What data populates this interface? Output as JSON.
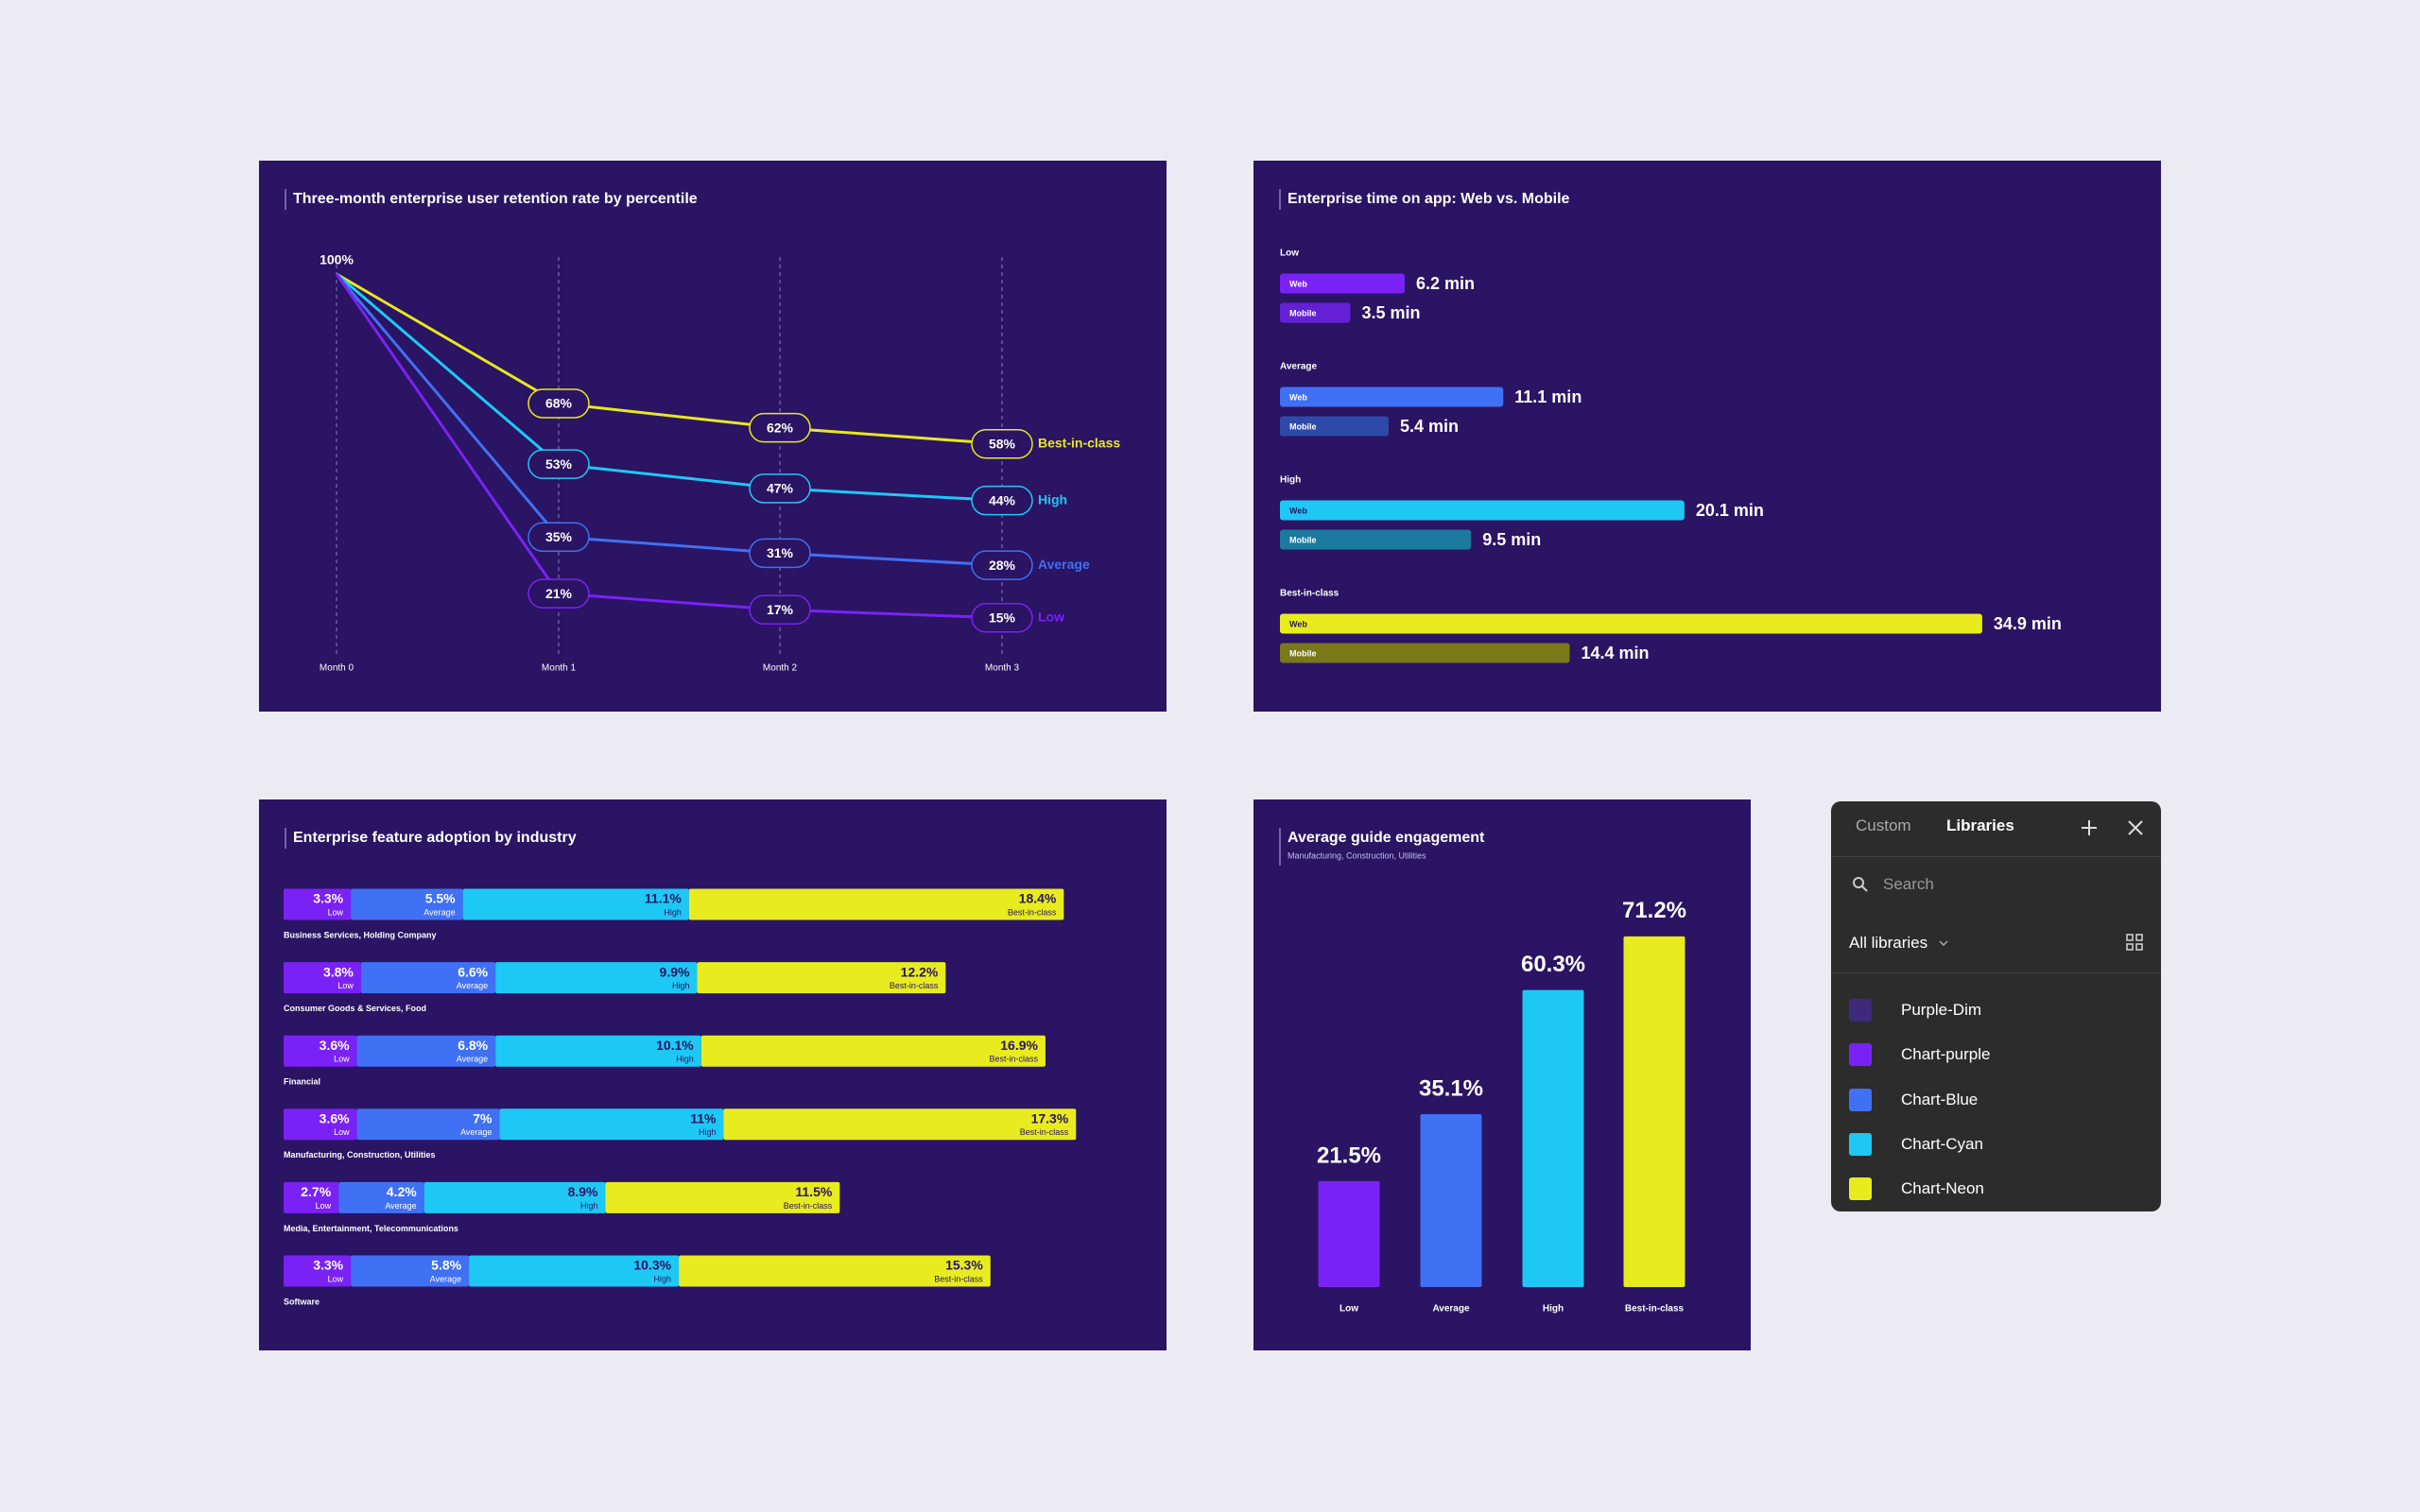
{
  "chart_data": [
    {
      "type": "line",
      "title": "Three-month enterprise user retention rate by percentile",
      "categories": [
        "Month 0",
        "Month 1",
        "Month 2",
        "Month 3"
      ],
      "ylim": [
        0,
        100
      ],
      "series": [
        {
          "name": "Best-in-class",
          "color": "#e8e81e",
          "values": [
            100,
            68,
            62,
            58
          ],
          "value_labels": [
            "100%",
            "68%",
            "62%",
            "58%"
          ]
        },
        {
          "name": "High",
          "color": "#1ec8f5",
          "values": [
            100,
            53,
            47,
            44
          ],
          "value_labels": [
            null,
            "53%",
            "47%",
            "44%"
          ]
        },
        {
          "name": "Average",
          "color": "#4070f4",
          "values": [
            100,
            35,
            31,
            28
          ],
          "value_labels": [
            null,
            "35%",
            "31%",
            "28%"
          ]
        },
        {
          "name": "Low",
          "color": "#7a22f5",
          "values": [
            100,
            21,
            17,
            15
          ],
          "value_labels": [
            null,
            "21%",
            "17%",
            "15%"
          ]
        }
      ]
    },
    {
      "type": "hbar",
      "title": "Enterprise time on app: Web vs. Mobile",
      "categories": [
        "Low",
        "Average",
        "High",
        "Best-in-class"
      ],
      "xlim": [
        0,
        35
      ],
      "series": [
        {
          "name": "Web",
          "colors": [
            "#7a22f5",
            "#4070f4",
            "#1ec8f5",
            "#e8ec1e"
          ],
          "values": [
            6.2,
            11.1,
            20.1,
            34.9
          ],
          "value_labels": [
            "6.2 min",
            "11.1 min",
            "20.1 min",
            "34.9 min"
          ]
        },
        {
          "name": "Mobile",
          "colors": [
            "#6420d4",
            "#2e4aa8",
            "#1c7a9e",
            "#7a7818"
          ],
          "values": [
            3.5,
            5.4,
            9.5,
            14.4
          ],
          "value_labels": [
            "3.5 min",
            "5.4 min",
            "9.5 min",
            "14.4 min"
          ]
        }
      ]
    },
    {
      "type": "stackedbar",
      "title": "Enterprise feature adoption by industry",
      "categories": [
        "Business Services, Holding Company",
        "Consumer Goods & Services, Food",
        "Financial",
        "Manufacturing, Construction, Utilities",
        "Media, Entertainment, Telecommunications",
        "Software"
      ],
      "xlim": [
        0,
        40
      ],
      "series": [
        {
          "name": "Low",
          "color": "#7a22f5",
          "values": [
            3.3,
            3.8,
            3.6,
            3.6,
            2.7,
            3.3
          ],
          "value_labels": [
            "3.3%",
            "3.8%",
            "3.6%",
            "3.6%",
            "2.7%",
            "3.3%"
          ]
        },
        {
          "name": "Average",
          "color": "#4070f4",
          "values": [
            5.5,
            6.6,
            6.8,
            7,
            4.2,
            5.8
          ],
          "value_labels": [
            "5.5%",
            "6.6%",
            "6.8%",
            "7%",
            "4.2%",
            "5.8%"
          ]
        },
        {
          "name": "High",
          "color": "#1ec8f5",
          "values": [
            11.1,
            9.9,
            10.1,
            11,
            8.9,
            10.3
          ],
          "value_labels": [
            "11.1%",
            "9.9%",
            "10.1%",
            "11%",
            "8.9%",
            "10.3%"
          ]
        },
        {
          "name": "Best-in-class",
          "color": "#e8ec1e",
          "values": [
            18.4,
            12.2,
            16.9,
            17.3,
            11.5,
            15.3
          ],
          "value_labels": [
            "18.4%",
            "12.2%",
            "16.9%",
            "17.3%",
            "11.5%",
            "15.3%"
          ]
        }
      ]
    },
    {
      "type": "bar",
      "title": "Average guide engagement",
      "subtitle": "Manufacturing, Construction, Utilities",
      "categories": [
        "Low",
        "Average",
        "High",
        "Best-in-class"
      ],
      "values": [
        21.5,
        35.1,
        60.3,
        71.2
      ],
      "value_labels": [
        "21.5%",
        "35.1%",
        "60.3%",
        "71.2%"
      ],
      "colors": [
        "#7a22f5",
        "#4070f4",
        "#1ec8f5",
        "#e8ec1e"
      ],
      "ylim": [
        0,
        80
      ]
    }
  ],
  "library_panel": {
    "tabs": [
      "Custom",
      "Libraries"
    ],
    "search_placeholder": "Search",
    "filter": "All libraries",
    "items": [
      {
        "name": "Purple-Dim",
        "color": "#3d2a7a"
      },
      {
        "name": "Chart-purple",
        "color": "#7a22f5"
      },
      {
        "name": "Chart-Blue",
        "color": "#4070f4"
      },
      {
        "name": "Chart-Cyan",
        "color": "#1ec8f5"
      },
      {
        "name": "Chart-Neon",
        "color": "#e8ec1e"
      }
    ]
  }
}
